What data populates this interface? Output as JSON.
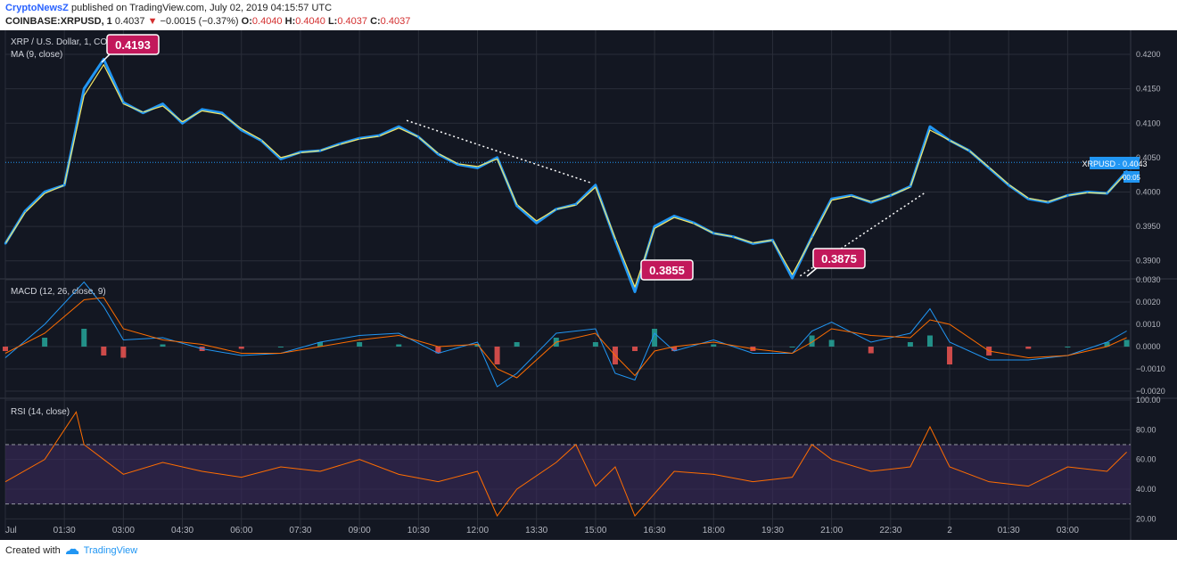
{
  "header": {
    "author": "CryptoNewsZ",
    "published_text": "published on TradingView.com, July 02, 2019 04:15:57 UTC",
    "symbol": "COINBASE:XRPUSD, 1",
    "last": "0.4037",
    "change": "−0.0015 (−0.37%)",
    "o_label": "O:",
    "o_value": "0.4040",
    "h_label": "H:",
    "h_value": "0.4040",
    "l_label": "L:",
    "l_value": "0.4037",
    "c_label": "C:",
    "c_value": "0.4037"
  },
  "price_pane": {
    "title": "XRP / U.S. Dollar, 1, COINBASE",
    "ma_label": "MA (9, close)",
    "current_badge": "XRPUSD · 0.4043",
    "countdown_badge": "00:05",
    "callout_high": "0.4193",
    "callout_low1": "0.3855",
    "callout_low2": "0.3875"
  },
  "macd_pane": {
    "label": "MACD (12, 26, close, 9)"
  },
  "rsi_pane": {
    "label": "RSI (14, close)"
  },
  "footer": {
    "created_with": "Created with",
    "brand": "TradingView"
  },
  "colors": {
    "background": "#131722",
    "price_line": "#2196f3",
    "ma_line": "#f5e663",
    "macd_line": "#2196f3",
    "signal_line": "#ff6d00",
    "hist_pos": "#26a69a",
    "hist_neg": "#ef5350",
    "rsi_line": "#ff6d00",
    "rsi_band": "#3a2a5c",
    "callout": "#c2185b"
  },
  "chart_data": [
    {
      "type": "line",
      "title": "XRP / U.S. Dollar, 1, COINBASE",
      "ylim": [
        0.3875,
        0.4235
      ],
      "y_ticks": [
        "0.4200",
        "0.4150",
        "0.4100",
        "0.4050",
        "0.4000",
        "0.3950",
        "0.3900"
      ],
      "x_ticks": [
        "Jul",
        "01:30",
        "03:00",
        "04:30",
        "06:00",
        "07:30",
        "09:00",
        "10:30",
        "12:00",
        "13:30",
        "15:00",
        "16:30",
        "18:00",
        "19:30",
        "21:00",
        "22:30",
        "2",
        "01:30",
        "03:00"
      ],
      "series": [
        {
          "name": "XRP / U.S. Dollar",
          "x": [
            0,
            0.5,
            1,
            1.5,
            2,
            2.5,
            3,
            3.5,
            4,
            4.5,
            5,
            5.5,
            6,
            6.5,
            7,
            7.5,
            8,
            8.5,
            9,
            9.5,
            10,
            10.5,
            11,
            11.5,
            12,
            12.5,
            13,
            13.5,
            14,
            14.5,
            15,
            15.5,
            16,
            16.5,
            17,
            17.5,
            18,
            18.5,
            19,
            19.5,
            20,
            20.5,
            21,
            21.5,
            22,
            22.5,
            23,
            23.5,
            24,
            24.5,
            25,
            25.5,
            26,
            26.5,
            27,
            27.5,
            28,
            28.5
          ],
          "values": [
            0.3925,
            0.3972,
            0.4,
            0.401,
            0.415,
            0.4193,
            0.413,
            0.4115,
            0.4128,
            0.41,
            0.412,
            0.4115,
            0.409,
            0.4075,
            0.4048,
            0.4058,
            0.406,
            0.407,
            0.4078,
            0.4082,
            0.4095,
            0.408,
            0.4055,
            0.404,
            0.4035,
            0.405,
            0.398,
            0.3955,
            0.3975,
            0.3982,
            0.401,
            0.393,
            0.3855,
            0.395,
            0.3965,
            0.3955,
            0.394,
            0.3935,
            0.3925,
            0.393,
            0.3875,
            0.3935,
            0.399,
            0.3995,
            0.3985,
            0.3995,
            0.4008,
            0.4095,
            0.4075,
            0.406,
            0.4035,
            0.401,
            0.399,
            0.3985,
            0.3995,
            0.4,
            0.3998,
            0.403
          ]
        },
        {
          "name": "MA (9, close)",
          "x": [
            0,
            0.5,
            1,
            1.5,
            2,
            2.5,
            3,
            3.5,
            4,
            4.5,
            5,
            5.5,
            6,
            6.5,
            7,
            7.5,
            8,
            8.5,
            9,
            9.5,
            10,
            10.5,
            11,
            11.5,
            12,
            12.5,
            13,
            13.5,
            14,
            14.5,
            15,
            15.5,
            16,
            16.5,
            17,
            17.5,
            18,
            18.5,
            19,
            19.5,
            20,
            20.5,
            21,
            21.5,
            22,
            22.5,
            23,
            23.5,
            24,
            24.5,
            25,
            25.5,
            26,
            26.5,
            27,
            27.5,
            28,
            28.5
          ],
          "values": [
            0.3925,
            0.397,
            0.3998,
            0.401,
            0.414,
            0.4185,
            0.4128,
            0.4116,
            0.4125,
            0.4102,
            0.4118,
            0.4113,
            0.4092,
            0.4076,
            0.405,
            0.4057,
            0.406,
            0.4069,
            0.4077,
            0.4081,
            0.4093,
            0.408,
            0.4056,
            0.4041,
            0.4037,
            0.4048,
            0.3982,
            0.3958,
            0.3975,
            0.3981,
            0.4007,
            0.3933,
            0.3862,
            0.3947,
            0.3963,
            0.3954,
            0.394,
            0.3935,
            0.3926,
            0.393,
            0.388,
            0.3933,
            0.3988,
            0.3994,
            0.3986,
            0.3995,
            0.4007,
            0.409,
            0.4075,
            0.406,
            0.4036,
            0.4011,
            0.3991,
            0.3986,
            0.3995,
            0.3999,
            0.3998,
            0.4028
          ]
        }
      ]
    },
    {
      "type": "line",
      "title": "MACD (12, 26, close, 9)",
      "ylim": [
        -0.0022,
        0.003
      ],
      "y_ticks": [
        "0.0030",
        "0.0020",
        "0.0010",
        "0.0000",
        "−0.0010",
        "−0.0020"
      ],
      "series": [
        {
          "name": "MACD",
          "x": [
            0,
            1,
            2,
            2.5,
            3,
            4,
            5,
            6,
            7,
            8,
            9,
            10,
            11,
            12,
            12.5,
            13,
            14,
            15,
            15.5,
            16,
            16.5,
            17,
            18,
            19,
            20,
            20.5,
            21,
            22,
            23,
            23.5,
            24,
            25,
            26,
            27,
            28,
            28.5
          ],
          "values": [
            -0.0005,
            0.001,
            0.0029,
            0.0018,
            0.0003,
            0.0004,
            -0.0001,
            -0.0004,
            -0.0003,
            0.0002,
            0.0005,
            0.0006,
            -0.0003,
            0.0002,
            -0.0018,
            -0.0012,
            0.0006,
            0.0008,
            -0.0012,
            -0.0015,
            0.0006,
            -0.0002,
            0.0003,
            -0.0003,
            -0.0003,
            0.0007,
            0.0011,
            0.0002,
            0.0006,
            0.0017,
            0.0002,
            -0.0006,
            -0.0006,
            -0.0004,
            0.0002,
            0.0007
          ]
        },
        {
          "name": "Signal",
          "x": [
            0,
            1,
            2,
            2.5,
            3,
            4,
            5,
            6,
            7,
            8,
            9,
            10,
            11,
            12,
            12.5,
            13,
            14,
            15,
            15.5,
            16,
            16.5,
            17,
            18,
            19,
            20,
            20.5,
            21,
            22,
            23,
            23.5,
            24,
            25,
            26,
            27,
            28,
            28.5
          ],
          "values": [
            -0.0003,
            0.0006,
            0.0021,
            0.0022,
            0.0008,
            0.0003,
            0.0001,
            -0.0003,
            -0.0003,
            0.0,
            0.0003,
            0.0005,
            0.0,
            0.0001,
            -0.001,
            -0.0014,
            0.0002,
            0.0006,
            -0.0004,
            -0.0013,
            -0.0002,
            0.0,
            0.0002,
            -0.0001,
            -0.0003,
            0.0002,
            0.0008,
            0.0005,
            0.0004,
            0.0012,
            0.001,
            -0.0002,
            -0.0005,
            -0.0004,
            0.0,
            0.0004
          ]
        }
      ]
    },
    {
      "type": "line",
      "title": "RSI (14, close)",
      "ylim": [
        10,
        100
      ],
      "y_ticks": [
        "100.00",
        "80.00",
        "60.00",
        "40.00",
        "20.00"
      ],
      "bands": [
        30,
        70
      ],
      "series": [
        {
          "name": "RSI",
          "x": [
            0,
            1,
            1.8,
            2,
            2.5,
            3,
            4,
            5,
            6,
            7,
            8,
            9,
            10,
            11,
            12,
            12.5,
            13,
            14,
            14.5,
            15,
            15.5,
            16,
            17,
            18,
            19,
            20,
            20.5,
            21,
            22,
            23,
            23.5,
            24,
            25,
            26,
            27,
            28,
            28.5
          ],
          "values": [
            45,
            60,
            92,
            70,
            60,
            50,
            58,
            52,
            48,
            55,
            52,
            60,
            50,
            45,
            52,
            22,
            40,
            58,
            70,
            42,
            55,
            22,
            52,
            50,
            45,
            48,
            70,
            60,
            52,
            55,
            82,
            55,
            45,
            42,
            55,
            52,
            65
          ]
        }
      ]
    }
  ]
}
